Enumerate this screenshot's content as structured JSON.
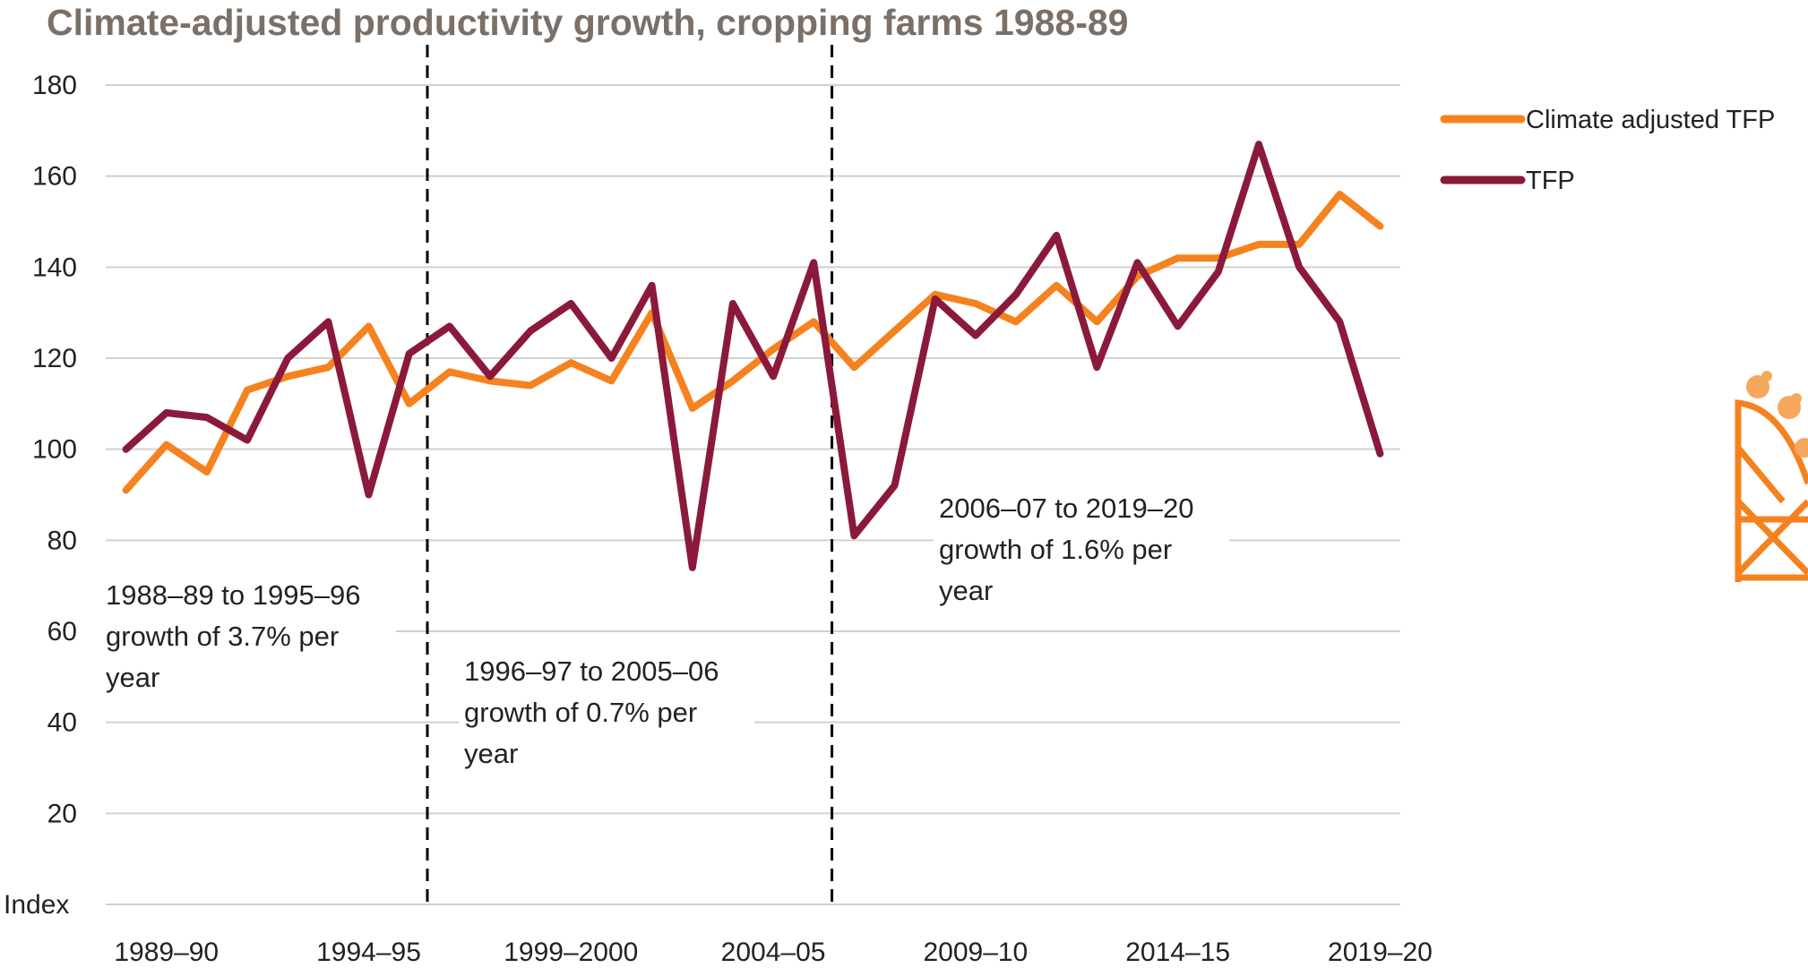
{
  "colors": {
    "climate": "#F5821F",
    "tfp": "#8B1A3A",
    "grid": "#d0d0d0",
    "divider": "#000000",
    "title": "#7a7068"
  },
  "chart_data": {
    "type": "line",
    "title": "Climate-adjusted productivity growth, cropping farms 1988-89",
    "ylabel": "Index",
    "ylim": [
      0,
      180
    ],
    "yticks": [
      20,
      40,
      60,
      80,
      100,
      120,
      140,
      160,
      180
    ],
    "grid": true,
    "legend_position": "right",
    "x": [
      "1988–89",
      "1989–90",
      "1990–91",
      "1991–92",
      "1992–93",
      "1993–94",
      "1994–95",
      "1995–96",
      "1996–97",
      "1997–98",
      "1998–99",
      "1999–2000",
      "2000–01",
      "2001–02",
      "2002–03",
      "2003–04",
      "2004–05",
      "2005–06",
      "2006–07",
      "2007–08",
      "2008–09",
      "2009–10",
      "2010–11",
      "2011–12",
      "2012–13",
      "2013–14",
      "2014–15",
      "2015–16",
      "2016–17",
      "2017–18",
      "2018–19",
      "2019–20"
    ],
    "xtick_labels": [
      "1989–90",
      "1994–95",
      "1999–2000",
      "2004–05",
      "2009–10",
      "2014–15",
      "2019–20"
    ],
    "series": [
      {
        "name": "Climate adjusted TFP",
        "color": "#F5821F",
        "values": [
          91,
          101,
          95,
          113,
          116,
          118,
          127,
          110,
          117,
          115,
          114,
          119,
          115,
          130,
          109,
          115,
          122,
          128,
          118,
          126,
          134,
          132,
          128,
          136,
          128,
          138,
          142,
          142,
          145,
          145,
          156,
          149
        ]
      },
      {
        "name": "TFP",
        "color": "#8B1A3A",
        "values": [
          100,
          108,
          107,
          102,
          120,
          128,
          90,
          121,
          127,
          116,
          126,
          132,
          120,
          136,
          74,
          132,
          116,
          141,
          81,
          92,
          133,
          125,
          134,
          147,
          118,
          141,
          127,
          139,
          167,
          140,
          128,
          99
        ]
      }
    ],
    "dividers_after": [
      "1995–96",
      "2005–06"
    ],
    "annotations": [
      {
        "lines": [
          "1988–89 to 1995–96",
          "growth of 3.7% per",
          "year"
        ]
      },
      {
        "lines": [
          "1996–97 to 2005–06",
          "growth of 0.7% per",
          "year"
        ]
      },
      {
        "lines": [
          "2006–07 to 2019–20",
          "growth of 1.6% per",
          "year"
        ]
      }
    ]
  }
}
